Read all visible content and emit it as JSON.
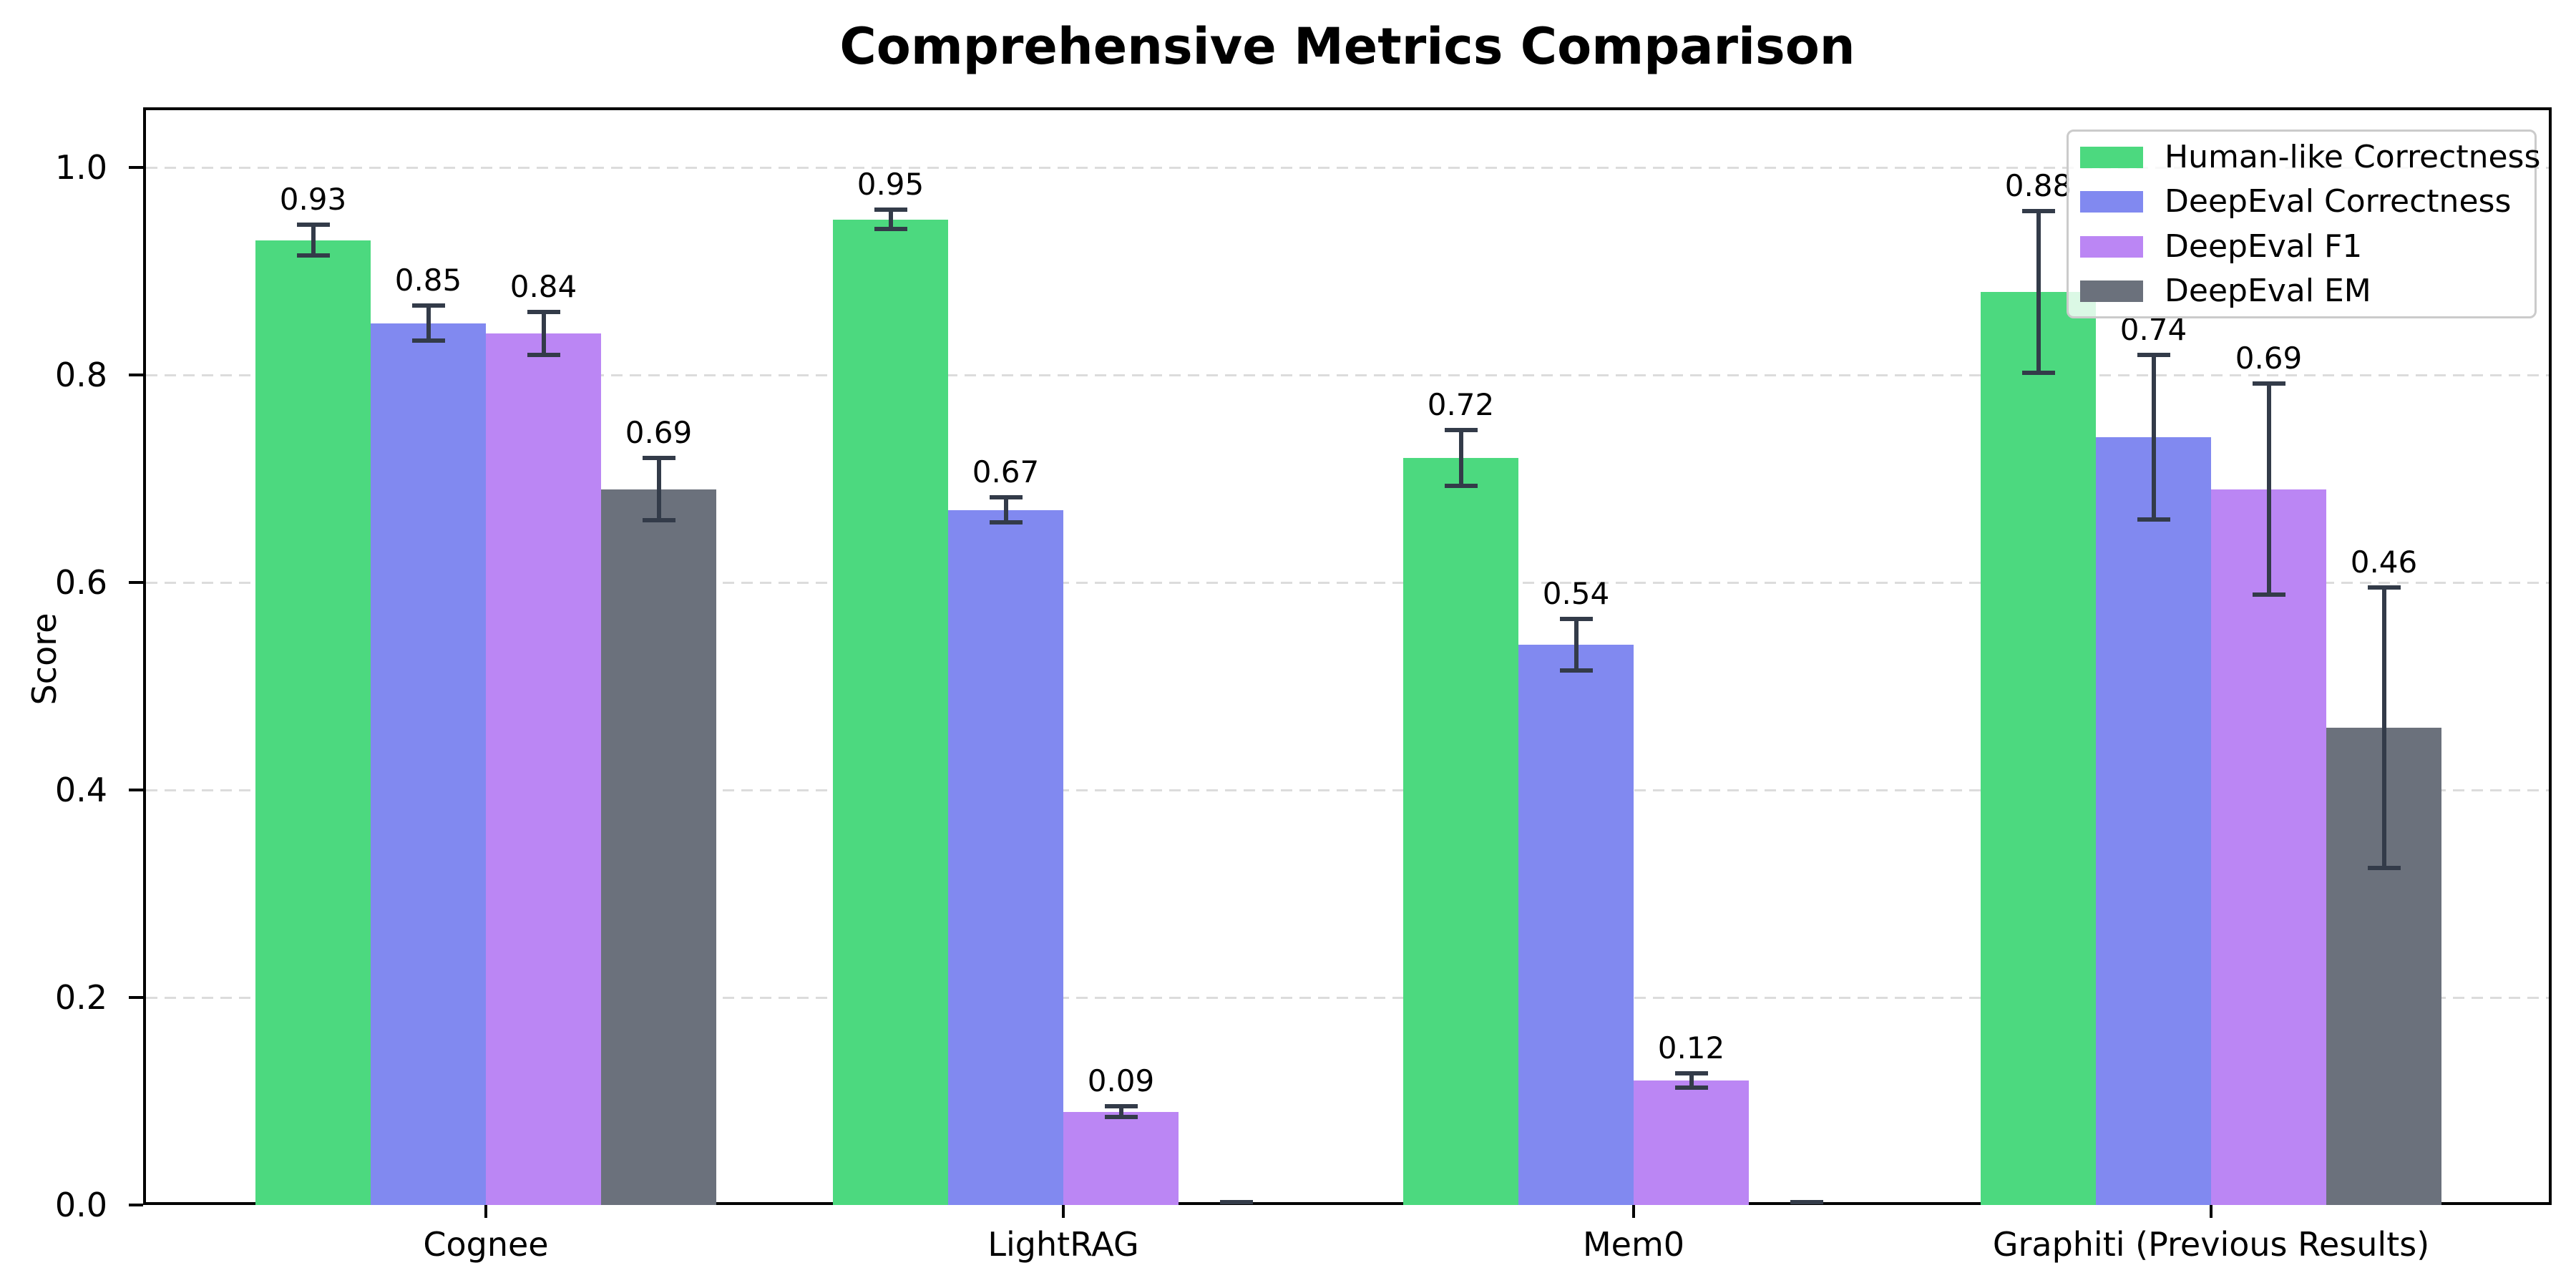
{
  "chart_data": {
    "type": "bar",
    "title": "Comprehensive Metrics Comparison",
    "ylabel": "Score",
    "xlabel": "",
    "categories": [
      "Cognee",
      "LightRAG",
      "Mem0",
      "Graphiti (Previous Results)"
    ],
    "series": [
      {
        "name": "Human-like Correctness",
        "color": "#4cd97f",
        "values": [
          0.93,
          0.95,
          0.72,
          0.88
        ],
        "errors": [
          0.015,
          0.009,
          0.027,
          0.078
        ],
        "labels": [
          "0.93",
          "0.95",
          "0.72",
          "0.88"
        ]
      },
      {
        "name": "DeepEval Correctness",
        "color": "#8189f0",
        "values": [
          0.85,
          0.67,
          0.54,
          0.74
        ],
        "errors": [
          0.017,
          0.012,
          0.025,
          0.079
        ],
        "labels": [
          "0.85",
          "0.67",
          "0.54",
          "0.74"
        ]
      },
      {
        "name": "DeepEval F1",
        "color": "#bb86f4",
        "values": [
          0.84,
          0.09,
          0.12,
          0.69
        ],
        "errors": [
          0.021,
          0.005,
          0.007,
          0.102
        ],
        "labels": [
          "0.84",
          "0.09",
          "0.12",
          "0.69"
        ]
      },
      {
        "name": "DeepEval EM",
        "color": "#6b717c",
        "values": [
          0.69,
          0.0,
          0.0,
          0.46
        ],
        "errors": [
          0.03,
          0.003,
          0.003,
          0.135
        ],
        "labels": [
          "0.69",
          null,
          null,
          "0.46"
        ]
      }
    ],
    "yticks": [
      "0.0",
      "0.2",
      "0.4",
      "0.6",
      "0.8",
      "1.0"
    ],
    "ytick_values": [
      0.0,
      0.2,
      0.4,
      0.6,
      0.8,
      1.0
    ],
    "ylim": [
      0.0,
      1.058
    ],
    "grid": true,
    "grid_style": "dashed",
    "grid_color": "#dcdcdc",
    "error_bar_color": "#333b49",
    "spine_color": "#000000",
    "legend_position": "upper right",
    "legend_border_color": "#cbcbcb",
    "text_color": "#000000",
    "background_color": "#ffffff"
  }
}
